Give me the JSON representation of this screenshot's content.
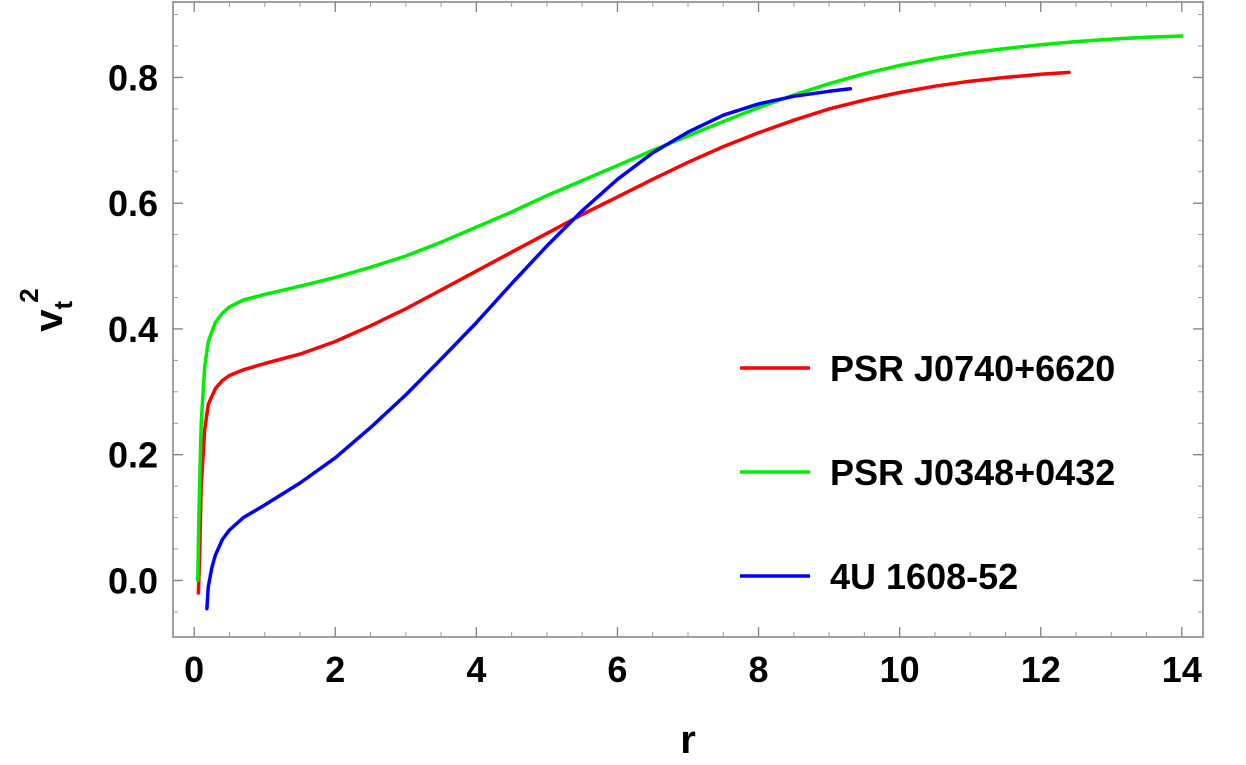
{
  "chart_data": {
    "type": "line",
    "title": "",
    "xlabel": "r",
    "ylabel": {
      "base": "v",
      "subscript": "t",
      "superscript": "2"
    },
    "xlim": [
      -0.3,
      14.3
    ],
    "ylim": [
      -0.09,
      0.92
    ],
    "x_ticks": [
      0,
      2,
      4,
      6,
      8,
      10,
      12,
      14
    ],
    "x_tick_labels": [
      "0",
      "2",
      "4",
      "6",
      "8",
      "10",
      "12",
      "14"
    ],
    "y_ticks": [
      0.0,
      0.2,
      0.4,
      0.6,
      0.8
    ],
    "y_tick_labels": [
      "0.0",
      "0.2",
      "0.4",
      "0.6",
      "0.8"
    ],
    "grid": false,
    "frame": true,
    "legend_position": "lower-right",
    "series": [
      {
        "name": "PSR J0740+6620",
        "color": "#ff0000",
        "x": [
          0.06,
          0.08,
          0.1,
          0.15,
          0.2,
          0.3,
          0.4,
          0.5,
          0.7,
          1.0,
          1.5,
          2.0,
          2.5,
          3.0,
          3.5,
          4.0,
          4.5,
          5.0,
          5.5,
          6.0,
          6.5,
          7.0,
          7.5,
          8.0,
          8.5,
          9.0,
          9.5,
          10.0,
          10.5,
          11.0,
          11.5,
          12.0,
          12.4
        ],
        "y": [
          -0.02,
          0.05,
          0.15,
          0.24,
          0.28,
          0.305,
          0.318,
          0.326,
          0.335,
          0.345,
          0.36,
          0.38,
          0.405,
          0.432,
          0.462,
          0.492,
          0.522,
          0.552,
          0.582,
          0.61,
          0.638,
          0.665,
          0.69,
          0.712,
          0.732,
          0.75,
          0.764,
          0.776,
          0.786,
          0.794,
          0.8,
          0.805,
          0.808
        ]
      },
      {
        "name": "PSR J0348+0432",
        "color": "#00ee00",
        "x": [
          0.05,
          0.07,
          0.1,
          0.15,
          0.2,
          0.3,
          0.4,
          0.5,
          0.7,
          1.0,
          1.5,
          2.0,
          2.5,
          3.0,
          3.5,
          4.0,
          4.5,
          5.0,
          5.5,
          6.0,
          6.5,
          7.0,
          7.5,
          8.0,
          8.5,
          9.0,
          9.5,
          10.0,
          10.5,
          11.0,
          11.5,
          12.0,
          12.5,
          13.0,
          13.5,
          14.0
        ],
        "y": [
          0.0,
          0.12,
          0.25,
          0.34,
          0.38,
          0.41,
          0.425,
          0.435,
          0.446,
          0.455,
          0.468,
          0.482,
          0.498,
          0.516,
          0.538,
          0.562,
          0.586,
          0.612,
          0.636,
          0.66,
          0.684,
          0.707,
          0.73,
          0.752,
          0.772,
          0.79,
          0.806,
          0.819,
          0.83,
          0.839,
          0.846,
          0.852,
          0.857,
          0.861,
          0.864,
          0.866
        ]
      },
      {
        "name": "4U 1608-52",
        "color": "#0000ff",
        "x": [
          0.18,
          0.2,
          0.25,
          0.3,
          0.4,
          0.5,
          0.7,
          1.0,
          1.5,
          2.0,
          2.5,
          3.0,
          3.5,
          4.0,
          4.5,
          5.0,
          5.5,
          6.0,
          6.5,
          7.0,
          7.5,
          8.0,
          8.5,
          9.0,
          9.3
        ],
        "y": [
          -0.045,
          -0.01,
          0.02,
          0.04,
          0.065,
          0.08,
          0.1,
          0.12,
          0.155,
          0.195,
          0.243,
          0.295,
          0.352,
          0.41,
          0.472,
          0.532,
          0.588,
          0.638,
          0.68,
          0.713,
          0.74,
          0.758,
          0.77,
          0.778,
          0.782
        ]
      }
    ]
  }
}
